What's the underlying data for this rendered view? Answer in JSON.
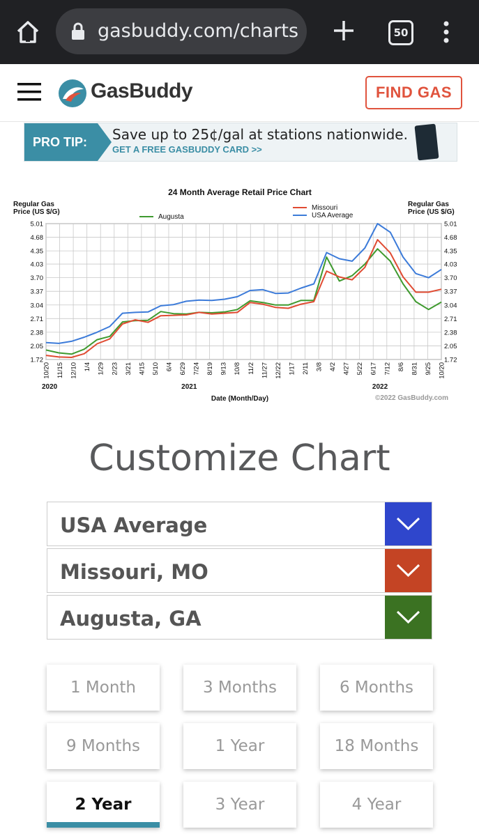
{
  "browser": {
    "url": "gasbuddy.com/charts",
    "tab_count": "50",
    "icons": [
      "home-icon",
      "lock-icon",
      "plus-icon",
      "tabs-icon",
      "kebab-menu-icon"
    ]
  },
  "header": {
    "logo_text": "GasBuddy",
    "find_gas_label": "FIND GAS",
    "accent": "#e0533d"
  },
  "promo": {
    "tag": "PRO TIP:",
    "main": "Save up to 25¢/gal at stations nationwide.",
    "link": "GET A FREE GASBUDDY CARD >>"
  },
  "chart_data": {
    "type": "line",
    "title": "24 Month Average Retail Price Chart",
    "ylabel_left": "Regular Gas Price (US $/G)",
    "ylabel_right": "Regular Gas Price (US $/G)",
    "xlabel": "Date (Month/Day)",
    "credit": "©2022 GasBuddy.com",
    "ylim": [
      1.72,
      5.01
    ],
    "yticks": [
      "5.01",
      "4.68",
      "4.35",
      "4.03",
      "3.70",
      "3.37",
      "3.04",
      "2.71",
      "2.38",
      "2.05",
      "1.72"
    ],
    "xticks": [
      "10/20",
      "11/15",
      "12/10",
      "1/4",
      "1/29",
      "2/23",
      "3/21",
      "4/15",
      "5/10",
      "6/4",
      "6/29",
      "7/24",
      "8/19",
      "9/13",
      "10/8",
      "11/2",
      "11/27",
      "12/22",
      "1/17",
      "2/11",
      "3/8",
      "4/2",
      "4/27",
      "5/22",
      "6/17",
      "7/12",
      "8/6",
      "8/31",
      "9/25",
      "10/20"
    ],
    "year_labels": [
      "2020",
      "2021",
      "2022"
    ],
    "grid": true,
    "legend_position": "top",
    "series": [
      {
        "name": "Augusta",
        "color": "#3f9a2f",
        "values": [
          1.95,
          1.88,
          1.85,
          1.97,
          2.2,
          2.28,
          2.63,
          2.66,
          2.67,
          2.88,
          2.83,
          2.82,
          2.86,
          2.85,
          2.87,
          2.93,
          3.14,
          3.1,
          3.04,
          3.04,
          3.15,
          3.15,
          4.2,
          3.62,
          3.75,
          4.03,
          4.4,
          4.1,
          3.55,
          3.12,
          2.93,
          3.11
        ]
      },
      {
        "name": "Missouri",
        "color": "#e04b32",
        "values": [
          1.82,
          1.78,
          1.77,
          1.86,
          2.1,
          2.22,
          2.58,
          2.68,
          2.62,
          2.78,
          2.79,
          2.8,
          2.86,
          2.82,
          2.84,
          2.86,
          3.1,
          3.06,
          2.98,
          2.96,
          3.06,
          3.12,
          3.86,
          3.72,
          3.65,
          3.95,
          4.62,
          4.3,
          3.72,
          3.35,
          3.35,
          3.42
        ]
      },
      {
        "name": "USA Average",
        "color": "#3c7bd9",
        "values": [
          2.13,
          2.11,
          2.16,
          2.26,
          2.38,
          2.52,
          2.84,
          2.86,
          2.87,
          3.02,
          3.05,
          3.13,
          3.16,
          3.15,
          3.18,
          3.24,
          3.39,
          3.41,
          3.32,
          3.33,
          3.45,
          3.55,
          4.31,
          4.16,
          4.1,
          4.42,
          5.01,
          4.8,
          4.2,
          3.8,
          3.7,
          3.9
        ]
      }
    ]
  },
  "customize": {
    "title": "Customize Chart",
    "selects": [
      {
        "label": "USA Average",
        "color": "#2f46cc"
      },
      {
        "label": "Missouri, MO",
        "color": "#c44424"
      },
      {
        "label": "Augusta, GA",
        "color": "#3b7222"
      }
    ],
    "ranges": [
      "1 Month",
      "3 Months",
      "6 Months",
      "9 Months",
      "1 Year",
      "18 Months",
      "2 Year",
      "3 Year",
      "4 Year"
    ],
    "active_range": "2 Year"
  }
}
